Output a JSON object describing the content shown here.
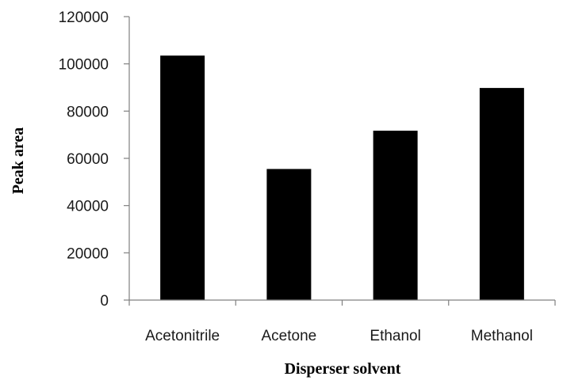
{
  "chart_data": {
    "type": "bar",
    "title": "",
    "xlabel": "Disperser solvent",
    "ylabel": "Peak area",
    "categories": [
      "Acetonitrile",
      "Acetone",
      "Ethanol",
      "Methanol"
    ],
    "values": [
      103500,
      55500,
      71700,
      89800
    ],
    "ylim": [
      0,
      120000
    ],
    "yticks": [
      "0",
      "20000",
      "40000",
      "60000",
      "80000",
      "100000",
      "120000"
    ],
    "grid": false,
    "legend": "none",
    "bar_color": "#000000",
    "axis_color": "#808080"
  }
}
